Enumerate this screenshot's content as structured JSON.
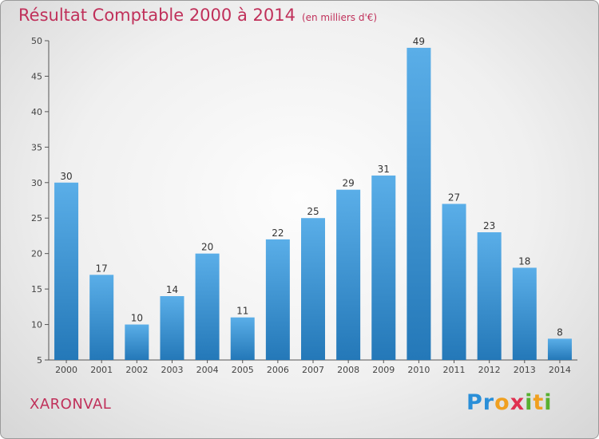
{
  "header": {
    "title": "Résultat Comptable 2000 à 2014",
    "unit": "(en milliers d'€)"
  },
  "footer": {
    "commune": "XARONVAL",
    "logo_letters": [
      {
        "ch": "P",
        "color": "#2a8fd8"
      },
      {
        "ch": "r",
        "color": "#2a8fd8"
      },
      {
        "ch": "o",
        "color": "#f0a020"
      },
      {
        "ch": "x",
        "color": "#e03050"
      },
      {
        "ch": "i",
        "color": "#58b030"
      },
      {
        "ch": "t",
        "color": "#f0a020"
      },
      {
        "ch": "i",
        "color": "#58b030"
      }
    ]
  },
  "colors": {
    "title": "#c0305a",
    "bar_top": "#5aaee8",
    "bar_bottom": "#2478b8",
    "axis": "#555555"
  },
  "chart_data": {
    "type": "bar",
    "title": "Résultat Comptable 2000 à 2014",
    "subtitle": "(en milliers d'€)",
    "categories": [
      "2000",
      "2001",
      "2002",
      "2003",
      "2004",
      "2005",
      "2006",
      "2007",
      "2008",
      "2009",
      "2010",
      "2011",
      "2012",
      "2013",
      "2014"
    ],
    "values": [
      30,
      17,
      10,
      14,
      20,
      11,
      22,
      25,
      29,
      31,
      49,
      27,
      23,
      18,
      8
    ],
    "ylim": [
      5,
      50
    ],
    "yticks": [
      5,
      10,
      15,
      20,
      25,
      30,
      35,
      40,
      45,
      50
    ],
    "xlabel": "",
    "ylabel": "",
    "grid": false,
    "legend": "none",
    "data_labels": true
  }
}
